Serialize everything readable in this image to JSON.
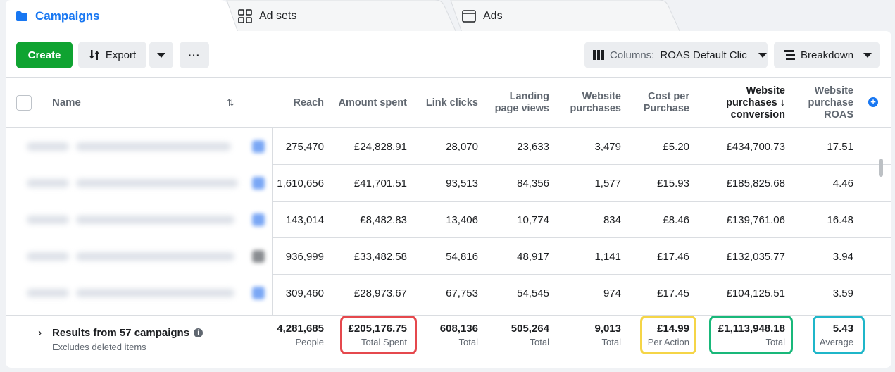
{
  "tabs": {
    "campaigns": "Campaigns",
    "adsets": "Ad sets",
    "ads": "Ads"
  },
  "toolbar": {
    "create": "Create",
    "export": "Export",
    "more": "···",
    "columns_label": "Columns:",
    "columns_value": "ROAS Default Clic",
    "breakdown": "Breakdown"
  },
  "columns": {
    "name": "Name",
    "reach": "Reach",
    "amount_spent": "Amount spent",
    "link_clicks": "Link clicks",
    "landing_1": "Landing",
    "landing_2": "page views",
    "wp_1": "Website",
    "wp_2": "purchases",
    "cpp_1": "Cost per",
    "cpp_2": "Purchase",
    "wpc_1": "Website",
    "wpc_2": "purchases ↓",
    "wpc_3": "conversion",
    "roas_1": "Website",
    "roas_2": "purchase",
    "roas_3": "ROAS"
  },
  "rows": [
    {
      "reach": "275,470",
      "spent": "£24,828.91",
      "clicks": "28,070",
      "lpv": "23,633",
      "purchases": "3,479",
      "cpp": "£5.20",
      "conv": "£434,700.73",
      "roas": "17.51"
    },
    {
      "reach": "1,610,656",
      "spent": "£41,701.51",
      "clicks": "93,513",
      "lpv": "84,356",
      "purchases": "1,577",
      "cpp": "£15.93",
      "conv": "£185,825.68",
      "roas": "4.46"
    },
    {
      "reach": "143,014",
      "spent": "£8,482.83",
      "clicks": "13,406",
      "lpv": "10,774",
      "purchases": "834",
      "cpp": "£8.46",
      "conv": "£139,761.06",
      "roas": "16.48"
    },
    {
      "reach": "936,999",
      "spent": "£33,482.58",
      "clicks": "54,816",
      "lpv": "48,917",
      "purchases": "1,141",
      "cpp": "£17.46",
      "conv": "£132,035.77",
      "roas": "3.94"
    },
    {
      "reach": "309,460",
      "spent": "£28,973.67",
      "clicks": "67,753",
      "lpv": "54,545",
      "purchases": "974",
      "cpp": "£17.45",
      "conv": "£104,125.51",
      "roas": "3.59"
    }
  ],
  "summary": {
    "title": "Results from 57 campaigns",
    "subtitle": "Excludes deleted items",
    "reach": {
      "value": "4,281,685",
      "label": "People"
    },
    "spent": {
      "value": "£205,176.75",
      "label": "Total Spent"
    },
    "clicks": {
      "value": "608,136",
      "label": "Total"
    },
    "lpv": {
      "value": "505,264",
      "label": "Total"
    },
    "purchases": {
      "value": "9,013",
      "label": "Total"
    },
    "cpp": {
      "value": "£14.99",
      "label": "Per Action"
    },
    "conv": {
      "value": "£1,113,948.18",
      "label": "Total"
    },
    "roas": {
      "value": "5.43",
      "label": "Average"
    }
  },
  "colors": {
    "accent": "#1877f2",
    "create": "#0fa331",
    "highlight_spent": "#e5484d",
    "highlight_cpp": "#f5d547",
    "highlight_conv": "#19b87a",
    "highlight_roas": "#1fb6c9"
  }
}
